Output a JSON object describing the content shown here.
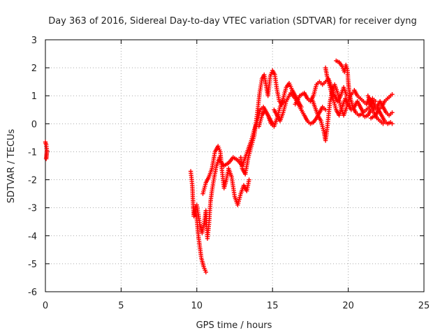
{
  "chart_data": {
    "type": "scatter",
    "title": "Day 363 of 2016, Sidereal Day-to-day VTEC variation (SDTVAR) for receiver dyng",
    "xlabel": "GPS time / hours",
    "ylabel": "SDTVAR / TECUs",
    "xlim": [
      0,
      25
    ],
    "ylim": [
      -6,
      3
    ],
    "xticks": [
      0,
      5,
      10,
      15,
      20,
      25
    ],
    "yticks": [
      -6,
      -5,
      -4,
      -3,
      -2,
      -1,
      0,
      1,
      2,
      3
    ],
    "grid": true,
    "marker": "+",
    "color": "#ff0000",
    "tracks": [
      [
        [
          0.0,
          -0.65
        ],
        [
          0.05,
          -0.75
        ],
        [
          0.1,
          -0.95
        ],
        [
          0.08,
          -1.1
        ],
        [
          0.05,
          -1.25
        ]
      ],
      [
        [
          9.6,
          -1.7
        ],
        [
          9.7,
          -2.2
        ],
        [
          9.75,
          -2.8
        ],
        [
          9.8,
          -3.3
        ],
        [
          9.9,
          -3.0
        ],
        [
          10.0,
          -3.4
        ],
        [
          10.1,
          -4.0
        ],
        [
          10.2,
          -4.4
        ],
        [
          10.3,
          -4.8
        ],
        [
          10.45,
          -5.1
        ],
        [
          10.6,
          -5.3
        ]
      ],
      [
        [
          9.8,
          -3.0
        ],
        [
          10.0,
          -2.9
        ],
        [
          10.2,
          -3.6
        ],
        [
          10.35,
          -3.9
        ],
        [
          10.5,
          -3.5
        ],
        [
          10.6,
          -3.1
        ],
        [
          10.7,
          -4.1
        ],
        [
          10.8,
          -3.6
        ],
        [
          10.9,
          -2.8
        ],
        [
          11.0,
          -2.4
        ],
        [
          11.15,
          -1.9
        ],
        [
          11.3,
          -1.5
        ],
        [
          11.5,
          -1.2
        ]
      ],
      [
        [
          10.4,
          -2.5
        ],
        [
          10.6,
          -2.1
        ],
        [
          10.8,
          -1.9
        ],
        [
          11.0,
          -1.6
        ],
        [
          11.2,
          -1.0
        ],
        [
          11.4,
          -0.8
        ],
        [
          11.55,
          -1.0
        ],
        [
          11.65,
          -1.6
        ],
        [
          11.8,
          -2.3
        ],
        [
          11.95,
          -2.0
        ],
        [
          12.1,
          -1.6
        ],
        [
          12.3,
          -1.9
        ],
        [
          12.5,
          -2.6
        ],
        [
          12.7,
          -2.9
        ],
        [
          12.9,
          -2.5
        ],
        [
          13.1,
          -2.2
        ],
        [
          13.3,
          -2.4
        ],
        [
          13.45,
          -2.0
        ]
      ],
      [
        [
          11.5,
          -1.3
        ],
        [
          11.8,
          -1.5
        ],
        [
          12.1,
          -1.4
        ],
        [
          12.4,
          -1.2
        ],
        [
          12.7,
          -1.3
        ],
        [
          13.0,
          -1.5
        ],
        [
          13.2,
          -1.2
        ],
        [
          13.4,
          -0.9
        ],
        [
          13.6,
          -0.6
        ],
        [
          13.8,
          -0.2
        ],
        [
          14.0,
          0.1
        ],
        [
          14.2,
          0.5
        ],
        [
          14.4,
          0.6
        ],
        [
          14.6,
          0.4
        ],
        [
          14.8,
          0.2
        ],
        [
          15.0,
          0.0
        ]
      ],
      [
        [
          12.9,
          -1.2
        ],
        [
          13.0,
          -1.6
        ],
        [
          13.2,
          -1.8
        ],
        [
          13.4,
          -1.2
        ],
        [
          13.6,
          -0.8
        ],
        [
          13.8,
          -0.4
        ],
        [
          14.0,
          0.4
        ],
        [
          14.15,
          1.1
        ],
        [
          14.3,
          1.6
        ],
        [
          14.45,
          1.75
        ],
        [
          14.6,
          1.3
        ],
        [
          14.7,
          1.0
        ],
        [
          14.85,
          1.7
        ],
        [
          15.0,
          1.9
        ],
        [
          15.15,
          1.75
        ],
        [
          15.3,
          1.2
        ],
        [
          15.45,
          0.8
        ],
        [
          15.6,
          0.7
        ],
        [
          15.8,
          0.8
        ]
      ],
      [
        [
          14.1,
          -0.1
        ],
        [
          14.3,
          0.3
        ],
        [
          14.5,
          0.5
        ],
        [
          14.7,
          0.3
        ],
        [
          14.9,
          0.0
        ],
        [
          15.1,
          -0.1
        ],
        [
          15.3,
          0.2
        ],
        [
          15.5,
          0.6
        ],
        [
          15.7,
          0.9
        ],
        [
          15.9,
          1.3
        ],
        [
          16.1,
          1.45
        ],
        [
          16.3,
          1.2
        ],
        [
          16.5,
          1.0
        ],
        [
          16.7,
          0.8
        ],
        [
          16.9,
          0.6
        ]
      ],
      [
        [
          15.1,
          0.5
        ],
        [
          15.3,
          0.3
        ],
        [
          15.5,
          0.1
        ],
        [
          15.7,
          0.4
        ],
        [
          15.9,
          0.8
        ],
        [
          16.2,
          1.1
        ],
        [
          16.5,
          0.9
        ],
        [
          16.8,
          0.6
        ],
        [
          17.1,
          0.3
        ],
        [
          17.3,
          0.1
        ],
        [
          17.5,
          0.0
        ],
        [
          17.7,
          0.05
        ],
        [
          17.9,
          0.2
        ],
        [
          18.1,
          0.4
        ],
        [
          18.3,
          0.6
        ],
        [
          18.5,
          0.5
        ]
      ],
      [
        [
          16.5,
          0.7
        ],
        [
          16.8,
          1.0
        ],
        [
          17.1,
          1.1
        ],
        [
          17.3,
          0.9
        ],
        [
          17.5,
          0.8
        ],
        [
          17.7,
          1.0
        ],
        [
          17.9,
          1.4
        ],
        [
          18.1,
          1.5
        ],
        [
          18.3,
          1.4
        ],
        [
          18.5,
          1.5
        ],
        [
          18.7,
          1.6
        ],
        [
          18.9,
          1.3
        ],
        [
          19.1,
          1.0
        ],
        [
          19.3,
          0.8
        ],
        [
          19.5,
          1.0
        ],
        [
          19.7,
          1.3
        ],
        [
          19.9,
          1.0
        ]
      ],
      [
        [
          17.6,
          0.9
        ],
        [
          17.8,
          0.6
        ],
        [
          18.0,
          0.3
        ],
        [
          18.2,
          0.1
        ],
        [
          18.4,
          -0.3
        ],
        [
          18.5,
          -0.6
        ],
        [
          18.6,
          -0.2
        ],
        [
          18.7,
          0.3
        ],
        [
          18.8,
          0.8
        ],
        [
          18.95,
          1.2
        ],
        [
          19.1,
          1.4
        ],
        [
          19.3,
          1.1
        ],
        [
          19.5,
          0.6
        ],
        [
          19.7,
          0.3
        ],
        [
          19.9,
          0.6
        ],
        [
          20.1,
          1.0
        ],
        [
          20.3,
          1.1
        ]
      ],
      [
        [
          18.5,
          2.0
        ],
        [
          18.6,
          1.7
        ],
        [
          18.8,
          1.3
        ],
        [
          19.0,
          0.9
        ],
        [
          19.2,
          0.5
        ],
        [
          19.4,
          0.3
        ],
        [
          19.6,
          0.6
        ],
        [
          19.8,
          0.9
        ],
        [
          20.0,
          0.7
        ],
        [
          20.2,
          0.5
        ],
        [
          20.4,
          0.6
        ],
        [
          20.6,
          0.8
        ],
        [
          20.8,
          0.6
        ],
        [
          21.0,
          0.4
        ],
        [
          21.2,
          0.5
        ],
        [
          21.4,
          0.6
        ],
        [
          21.6,
          0.9
        ],
        [
          21.8,
          0.8
        ]
      ],
      [
        [
          19.2,
          2.25
        ],
        [
          19.4,
          2.2
        ],
        [
          19.6,
          2.05
        ],
        [
          19.75,
          1.85
        ],
        [
          19.85,
          2.1
        ],
        [
          19.95,
          1.9
        ],
        [
          20.0,
          1.5
        ],
        [
          20.05,
          1.2
        ],
        [
          20.15,
          0.9
        ],
        [
          20.3,
          0.6
        ],
        [
          20.5,
          0.4
        ],
        [
          20.7,
          0.3
        ],
        [
          20.9,
          0.35
        ],
        [
          21.1,
          0.25
        ],
        [
          21.3,
          0.3
        ],
        [
          21.5,
          0.5
        ],
        [
          21.7,
          0.4
        ],
        [
          21.9,
          0.2
        ],
        [
          22.1,
          0.1
        ],
        [
          22.3,
          0.0
        ]
      ],
      [
        [
          20.4,
          1.2
        ],
        [
          20.6,
          1.0
        ],
        [
          20.8,
          0.9
        ],
        [
          21.0,
          0.8
        ],
        [
          21.2,
          0.7
        ],
        [
          21.4,
          0.9
        ],
        [
          21.6,
          0.8
        ],
        [
          21.8,
          0.6
        ],
        [
          22.0,
          0.5
        ],
        [
          22.2,
          0.6
        ],
        [
          22.4,
          0.8
        ],
        [
          22.6,
          0.9
        ],
        [
          22.8,
          1.0
        ],
        [
          22.9,
          1.05
        ]
      ],
      [
        [
          21.3,
          1.0
        ],
        [
          21.5,
          0.7
        ],
        [
          21.7,
          0.5
        ],
        [
          21.9,
          0.6
        ],
        [
          22.1,
          0.8
        ],
        [
          22.3,
          0.6
        ],
        [
          22.5,
          0.4
        ],
        [
          22.7,
          0.3
        ],
        [
          22.9,
          0.4
        ]
      ],
      [
        [
          21.5,
          0.2
        ],
        [
          21.8,
          0.3
        ],
        [
          22.0,
          0.5
        ],
        [
          22.2,
          0.3
        ],
        [
          22.4,
          0.1
        ],
        [
          22.6,
          0.0
        ],
        [
          22.8,
          0.05
        ],
        [
          22.9,
          0.0
        ]
      ]
    ]
  }
}
